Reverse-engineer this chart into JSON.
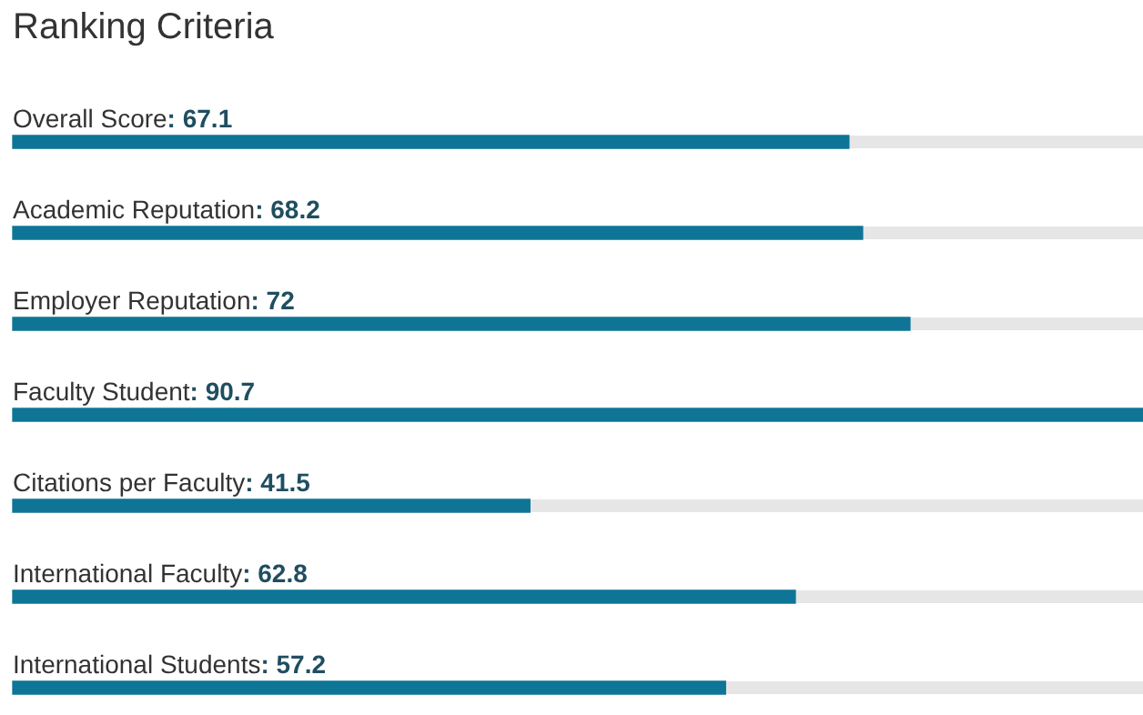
{
  "chart_data": {
    "type": "bar",
    "orientation": "horizontal",
    "title": "Ranking Criteria",
    "categories": [
      "Overall Score",
      "Academic Reputation",
      "Employer Reputation",
      "Faculty Student",
      "Citations per Faculty",
      "International Faculty",
      "International Students"
    ],
    "values": [
      67.1,
      68.2,
      72,
      90.7,
      41.5,
      62.8,
      57.2
    ],
    "value_labels": [
      ": 67.1",
      ": 68.2",
      ": 72",
      ": 90.7",
      ": 41.5",
      ": 62.8",
      ": 57.2"
    ],
    "color": "#0e7596"
  }
}
